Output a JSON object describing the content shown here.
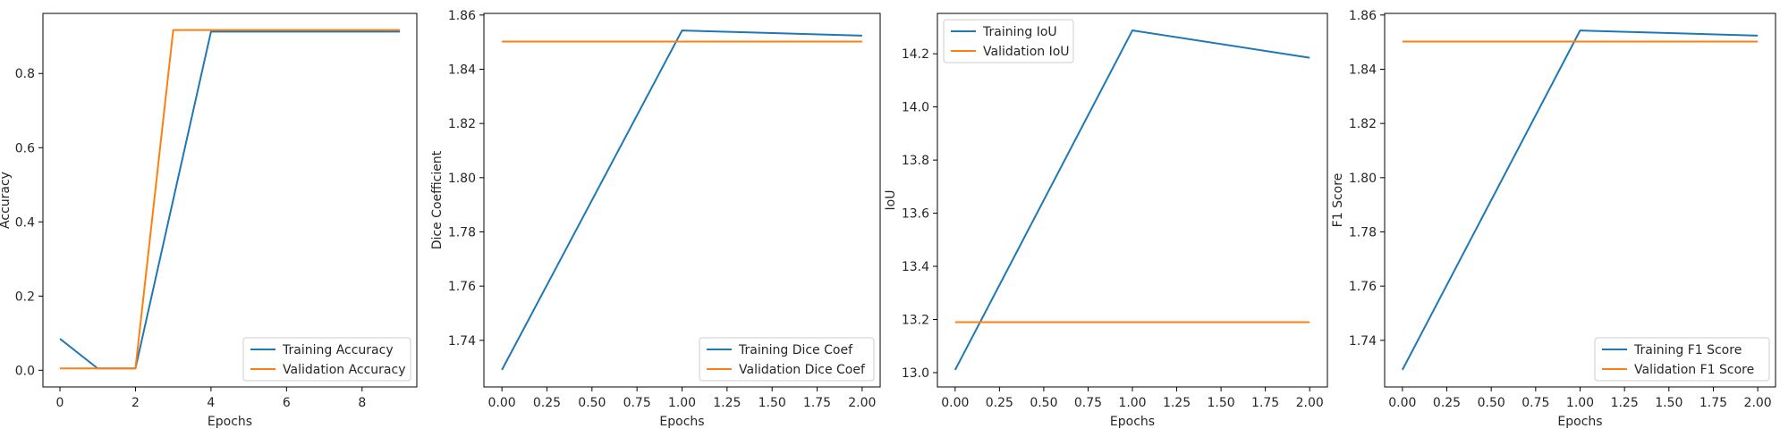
{
  "chart_data": [
    {
      "type": "line",
      "xlabel": "Epochs",
      "ylabel": "Accuracy",
      "x": [
        0,
        1,
        2,
        3,
        4,
        5,
        6,
        7,
        8,
        9
      ],
      "xlim": [
        -0.45,
        9.45
      ],
      "ylim": [
        -0.045,
        0.962
      ],
      "xticks": [
        0,
        2,
        4,
        6,
        8
      ],
      "xtick_labels": [
        "0",
        "2",
        "4",
        "6",
        "8"
      ],
      "yticks": [
        0.0,
        0.2,
        0.4,
        0.6,
        0.8
      ],
      "ytick_labels": [
        "0.0",
        "0.2",
        "0.4",
        "0.6",
        "0.8"
      ],
      "legend_position": "lower-right",
      "series": [
        {
          "name": "Training Accuracy",
          "color": "#1f77b4",
          "values": [
            0.085,
            0.005,
            0.005,
            0.46,
            0.913,
            0.913,
            0.913,
            0.913,
            0.913,
            0.913
          ]
        },
        {
          "name": "Validation Accuracy",
          "color": "#ff7f0e",
          "values": [
            0.005,
            0.005,
            0.005,
            0.917,
            0.917,
            0.917,
            0.917,
            0.917,
            0.917,
            0.917
          ]
        }
      ]
    },
    {
      "type": "line",
      "xlabel": "Epochs",
      "ylabel": "Dice Coefficient",
      "x": [
        0,
        1,
        2
      ],
      "xlim": [
        -0.1,
        2.1
      ],
      "ylim": [
        1.7228,
        1.8606
      ],
      "xticks": [
        0.0,
        0.25,
        0.5,
        0.75,
        1.0,
        1.25,
        1.5,
        1.75,
        2.0
      ],
      "xtick_labels": [
        "0.00",
        "0.25",
        "0.50",
        "0.75",
        "1.00",
        "1.25",
        "1.50",
        "1.75",
        "2.00"
      ],
      "yticks": [
        1.74,
        1.76,
        1.78,
        1.8,
        1.82,
        1.84,
        1.86
      ],
      "ytick_labels": [
        "1.74",
        "1.76",
        "1.78",
        "1.80",
        "1.82",
        "1.84",
        "1.86"
      ],
      "legend_position": "lower-right",
      "series": [
        {
          "name": "Training Dice Coef",
          "color": "#1f77b4",
          "values": [
            1.7291,
            1.8543,
            1.8524
          ]
        },
        {
          "name": "Validation Dice Coef",
          "color": "#ff7f0e",
          "values": [
            1.8502,
            1.8502,
            1.8502
          ]
        }
      ]
    },
    {
      "type": "line",
      "xlabel": "Epochs",
      "ylabel": "IoU",
      "x": [
        0,
        1,
        2
      ],
      "xlim": [
        -0.1,
        2.1
      ],
      "ylim": [
        12.946,
        14.352
      ],
      "xticks": [
        0.0,
        0.25,
        0.5,
        0.75,
        1.0,
        1.25,
        1.5,
        1.75,
        2.0
      ],
      "xtick_labels": [
        "0.00",
        "0.25",
        "0.50",
        "0.75",
        "1.00",
        "1.25",
        "1.50",
        "1.75",
        "2.00"
      ],
      "yticks": [
        13.0,
        13.2,
        13.4,
        13.6,
        13.8,
        14.0,
        14.2
      ],
      "ytick_labels": [
        "13.0",
        "13.2",
        "13.4",
        "13.6",
        "13.8",
        "14.0",
        "14.2"
      ],
      "legend_position": "upper-left",
      "series": [
        {
          "name": "Training IoU",
          "color": "#1f77b4",
          "values": [
            13.01,
            14.288,
            14.185
          ]
        },
        {
          "name": "Validation IoU",
          "color": "#ff7f0e",
          "values": [
            13.19,
            13.19,
            13.19
          ]
        }
      ]
    },
    {
      "type": "line",
      "xlabel": "Epochs",
      "ylabel": "F1 Score",
      "x": [
        0,
        1,
        2
      ],
      "xlim": [
        -0.1,
        2.1
      ],
      "ylim": [
        1.7228,
        1.8606
      ],
      "xticks": [
        0.0,
        0.25,
        0.5,
        0.75,
        1.0,
        1.25,
        1.5,
        1.75,
        2.0
      ],
      "xtick_labels": [
        "0.00",
        "0.25",
        "0.50",
        "0.75",
        "1.00",
        "1.25",
        "1.50",
        "1.75",
        "2.00"
      ],
      "yticks": [
        1.74,
        1.76,
        1.78,
        1.8,
        1.82,
        1.84,
        1.86
      ],
      "ytick_labels": [
        "1.74",
        "1.76",
        "1.78",
        "1.80",
        "1.82",
        "1.84",
        "1.86"
      ],
      "legend_position": "lower-right",
      "series": [
        {
          "name": "Training F1 Score",
          "color": "#1f77b4",
          "values": [
            1.7291,
            1.8543,
            1.8524
          ]
        },
        {
          "name": "Validation F1 Score",
          "color": "#ff7f0e",
          "values": [
            1.8502,
            1.8502,
            1.8502
          ]
        }
      ]
    }
  ]
}
